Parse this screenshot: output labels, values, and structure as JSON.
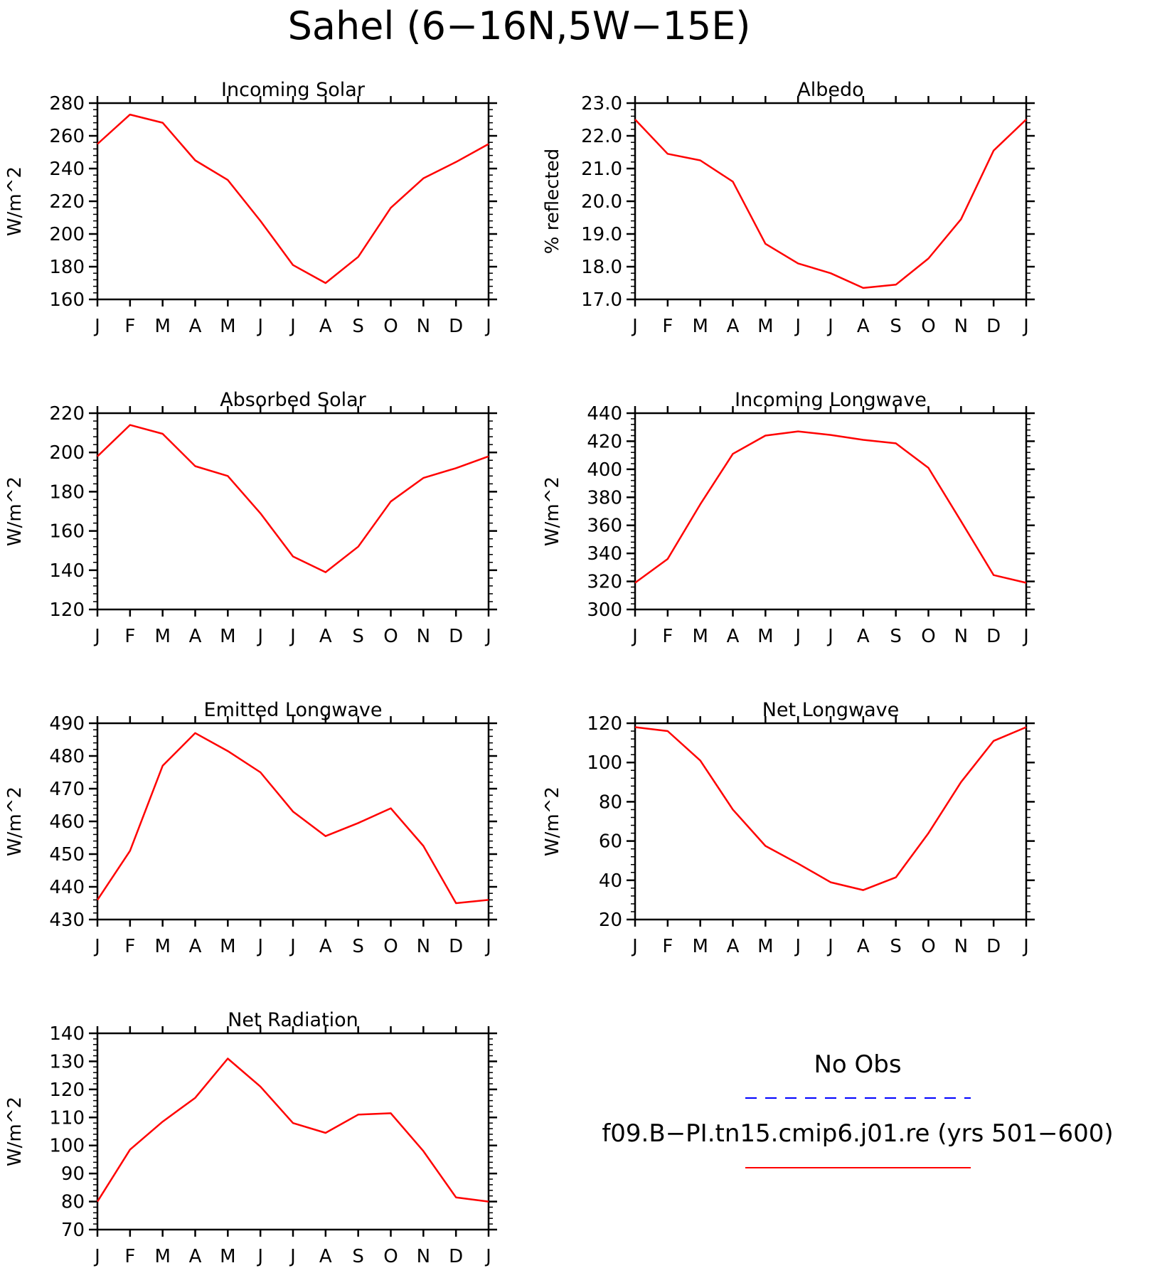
{
  "title": "Sahel (6−16N,5W−15E)",
  "months": [
    "J",
    "F",
    "M",
    "A",
    "M",
    "J",
    "J",
    "A",
    "S",
    "O",
    "N",
    "D",
    "J"
  ],
  "colors": {
    "model": "#ff0000",
    "obs": "#0000ff",
    "axis": "#000000"
  },
  "legend": {
    "obs_label": "No Obs",
    "model_label": "f09.B−PI.tn15.cmip6.j01.re (yrs 501−600)"
  },
  "chart_data": [
    {
      "type": "line",
      "title": "Incoming Solar",
      "ylabel": "W/m^2",
      "ylim": [
        160,
        280
      ],
      "yticks": [
        "160",
        "180",
        "200",
        "220",
        "240",
        "260",
        "280"
      ],
      "series": [
        {
          "values": [
            255,
            273,
            268,
            245,
            233,
            208,
            181,
            170,
            186,
            216,
            234,
            244,
            255
          ]
        }
      ]
    },
    {
      "type": "line",
      "title": "Albedo",
      "ylabel": "% reflected",
      "ylim": [
        17.0,
        23.0
      ],
      "yticks": [
        "17.0",
        "18.0",
        "19.0",
        "20.0",
        "21.0",
        "22.0",
        "23.0"
      ],
      "series": [
        {
          "values": [
            22.5,
            21.45,
            21.25,
            20.6,
            18.7,
            18.1,
            17.8,
            17.35,
            17.45,
            18.25,
            19.45,
            21.55,
            22.5
          ]
        }
      ]
    },
    {
      "type": "line",
      "title": "Absorbed Solar",
      "ylabel": "W/m^2",
      "ylim": [
        120,
        220
      ],
      "yticks": [
        "120",
        "140",
        "160",
        "180",
        "200",
        "220"
      ],
      "series": [
        {
          "values": [
            198,
            214,
            209.5,
            193,
            188,
            169,
            147,
            139,
            152,
            175,
            187,
            192,
            198
          ]
        }
      ]
    },
    {
      "type": "line",
      "title": "Incoming Longwave",
      "ylabel": "W/m^2",
      "ylim": [
        300,
        440
      ],
      "yticks": [
        "300",
        "320",
        "340",
        "360",
        "380",
        "400",
        "420",
        "440"
      ],
      "series": [
        {
          "values": [
            319,
            336,
            375,
            411,
            424,
            427,
            424.5,
            421,
            418.5,
            401,
            363,
            324.5,
            319
          ]
        }
      ]
    },
    {
      "type": "line",
      "title": "Emitted Longwave",
      "ylabel": "W/m^2",
      "ylim": [
        430,
        490
      ],
      "yticks": [
        "430",
        "440",
        "450",
        "460",
        "470",
        "480",
        "490"
      ],
      "series": [
        {
          "values": [
            436,
            451,
            477,
            487,
            481.5,
            475,
            463,
            455.5,
            459.5,
            464,
            452.5,
            435,
            436
          ]
        }
      ]
    },
    {
      "type": "line",
      "title": "Net Longwave",
      "ylabel": "W/m^2",
      "ylim": [
        20,
        120
      ],
      "yticks": [
        "20",
        "40",
        "60",
        "80",
        "100",
        "120"
      ],
      "series": [
        {
          "values": [
            118,
            116,
            101,
            76,
            57.5,
            48.5,
            39,
            35,
            41.5,
            64,
            90,
            111,
            118
          ]
        }
      ]
    },
    {
      "type": "line",
      "title": "Net Radiation",
      "ylabel": "W/m^2",
      "ylim": [
        70,
        140
      ],
      "yticks": [
        "70",
        "80",
        "90",
        "100",
        "110",
        "120",
        "130",
        "140"
      ],
      "series": [
        {
          "values": [
            80,
            98.5,
            108.5,
            117,
            131,
            121,
            108,
            104.5,
            111,
            111.5,
            98,
            81.5,
            80
          ]
        }
      ]
    }
  ]
}
